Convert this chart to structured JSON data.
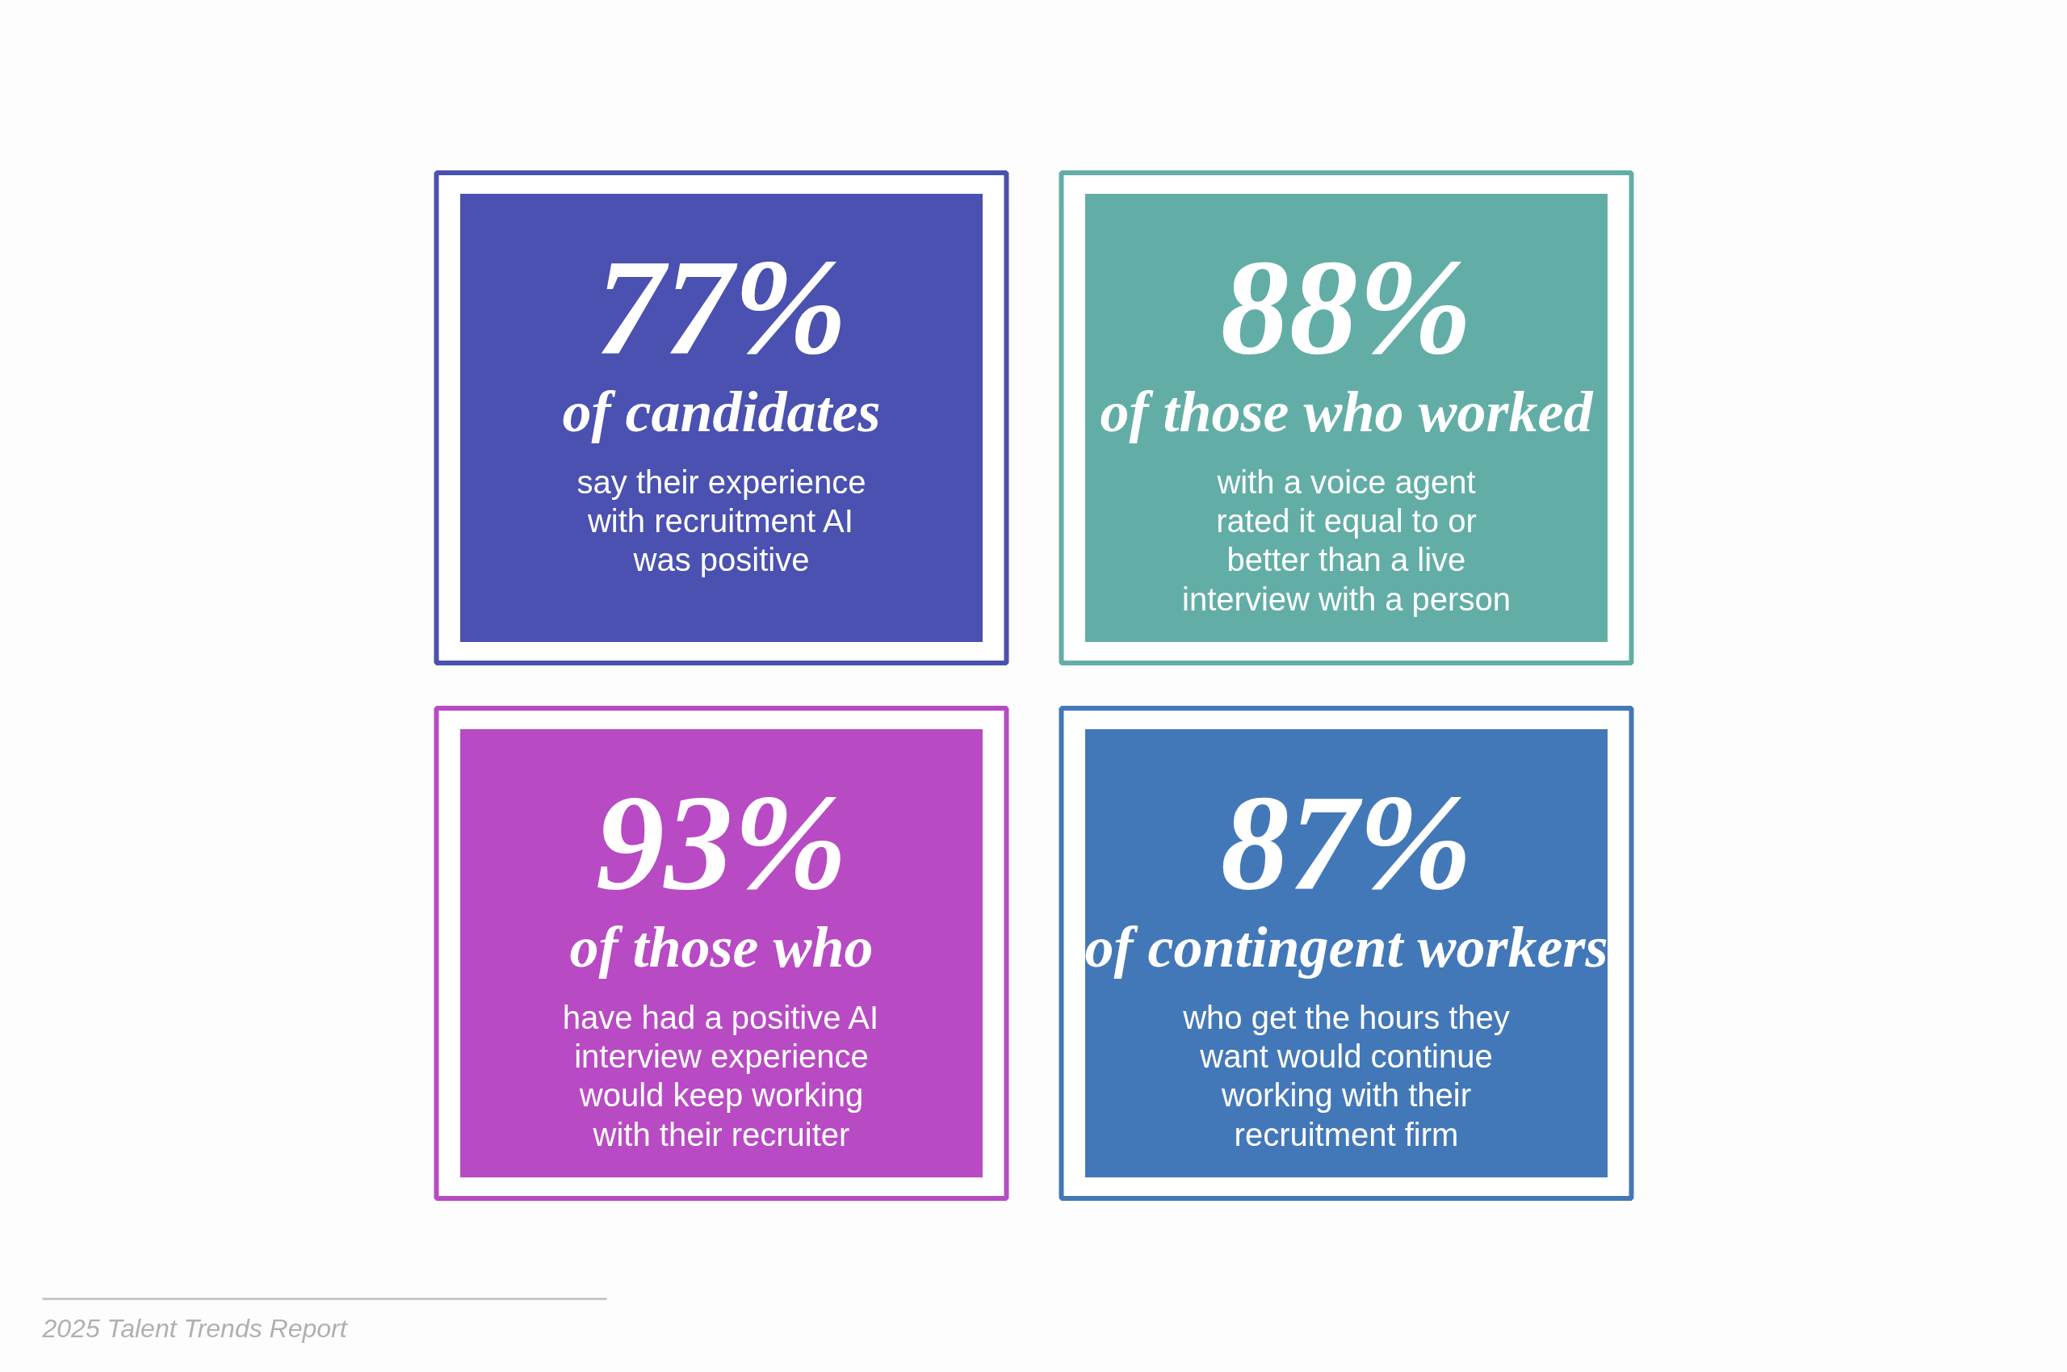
{
  "chart_data": {
    "type": "other",
    "categories": [
      "of candidates",
      "of those who worked",
      "of those who",
      "of contingent workers"
    ],
    "values": [
      77,
      88,
      93,
      87
    ],
    "value_labels": [
      "77%",
      "88%",
      "93%",
      "87%"
    ],
    "colors": [
      "#4a51b0",
      "#62aea6",
      "#b84ac4",
      "#4378b8"
    ],
    "annotations": [
      "say their experience\nwith recruitment AI\nwas positive",
      "with a voice agent\nrated it equal to or\nbetter than a live\ninterview with a person",
      "have had a positive AI\ninterview experience\nwould keep working\nwith their recruiter",
      "who get the hours they\nwant would continue\nworking with their\nrecruitment firm",
      "2025 Talent Trends Report"
    ]
  }
}
